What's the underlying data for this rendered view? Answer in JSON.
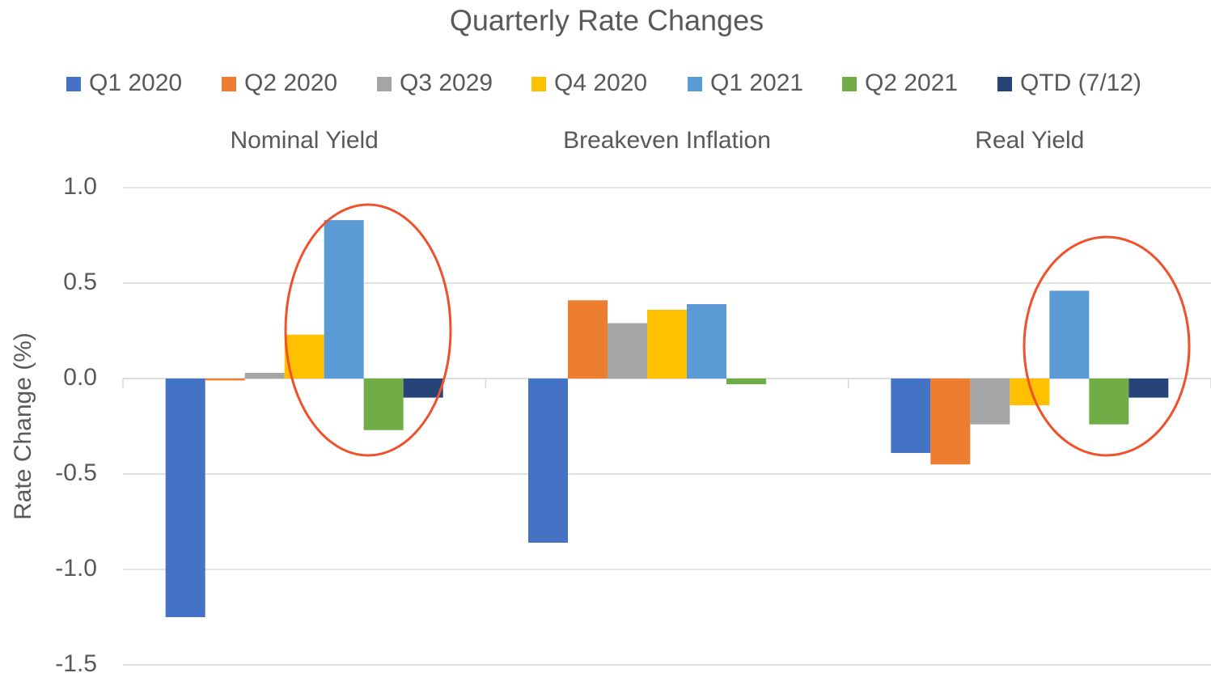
{
  "chart_data": {
    "type": "bar",
    "title": "Quarterly Rate Changes",
    "y_label": "Rate Change (%)",
    "categories": [
      "Nominal Yield",
      "Breakeven Inflation",
      "Real Yield"
    ],
    "series": [
      {
        "name": "Q1 2020",
        "color": "#4472c4",
        "values": [
          -1.25,
          -0.86,
          -0.39
        ]
      },
      {
        "name": "Q2 2020",
        "color": "#ed7d31",
        "values": [
          -0.01,
          0.41,
          -0.45
        ]
      },
      {
        "name": "Q3 2029",
        "color": "#a5a5a5",
        "values": [
          0.03,
          0.29,
          -0.24
        ]
      },
      {
        "name": "Q4 2020",
        "color": "#ffc000",
        "values": [
          0.23,
          0.36,
          -0.14
        ]
      },
      {
        "name": "Q1 2021",
        "color": "#5b9bd5",
        "values": [
          0.83,
          0.39,
          0.46
        ]
      },
      {
        "name": "Q2 2021",
        "color": "#70ad47",
        "values": [
          -0.27,
          -0.03,
          -0.24
        ]
      },
      {
        "name": "QTD (7/12)",
        "color": "#264478",
        "values": [
          -0.1,
          0,
          -0.1
        ]
      }
    ],
    "ylim": [
      -1.5,
      1.0
    ],
    "yticks": [
      {
        "value": 1.0,
        "label": "1.0"
      },
      {
        "value": 0.5,
        "label": "0.5"
      },
      {
        "value": 0.0,
        "label": "0.0"
      },
      {
        "value": -0.5,
        "label": "-0.5"
      },
      {
        "value": -1.0,
        "label": "-1.0"
      },
      {
        "value": -1.5,
        "label": "-1.5"
      }
    ],
    "grid": true
  }
}
